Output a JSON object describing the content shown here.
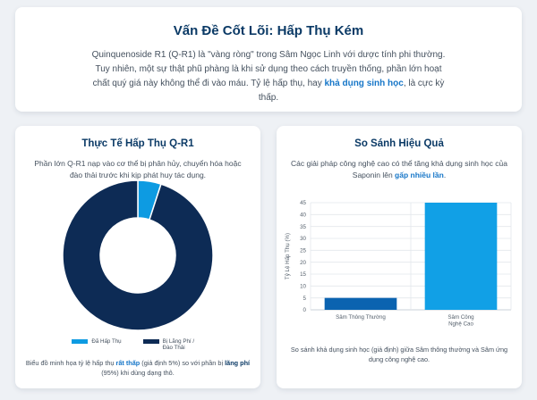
{
  "header": {
    "title": "Vấn Đề Cốt Lõi: Hấp Thụ Kém",
    "body_pre": "Quinquenoside R1 (Q-R1) là \"vàng ròng\" trong Sâm Ngọc Linh với dược tính phi thường. Tuy nhiên, một sự thật phũ phàng là khi sử dụng theo cách truyền thống, phần lớn hoạt chất quý giá này không thể đi vào máu. Tỷ lệ hấp thụ, hay ",
    "body_highlight": "khả dụng sinh học",
    "body_post": ", là cực kỳ thấp."
  },
  "left_card": {
    "title": "Thực Tế Hấp Thụ Q-R1",
    "subtitle": "Phần lớn Q-R1 nạp vào cơ thể bị phân hủy, chuyển hóa hoặc đào thải trước khi kịp phát huy tác dụng.",
    "footer_pre": "Biểu đồ minh họa tỷ lệ hấp thụ ",
    "footer_hl1": "rất thấp",
    "footer_mid": " (giả định 5%) so với phần bị ",
    "footer_hl2": "lãng phí",
    "footer_post": " (95%) khi dùng dạng thô."
  },
  "right_card": {
    "title": "So Sánh Hiệu Quả",
    "subtitle_pre": "Các giải pháp công nghệ cao có thể tăng khả dụng sinh học của Saponin lên ",
    "subtitle_hl": "gấp nhiều lần",
    "subtitle_post": ".",
    "footer": "So sánh khả dụng sinh học (giả định) giữa Sâm thông thường và Sâm ứng dụng công nghệ cao."
  },
  "colors": {
    "dark_navy": "#0d2b55",
    "light_blue": "#0d9be2",
    "bar_dark": "#0b63b0",
    "bar_light": "#11a0e6"
  },
  "chart_data": [
    {
      "type": "pie",
      "variant": "donut",
      "categories": [
        "Đã Hấp Thụ",
        "Bị Lãng Phí / Đào Thải"
      ],
      "values": [
        5,
        95
      ],
      "colors": [
        "#0d9be2",
        "#0d2b55"
      ],
      "legend_position": "bottom"
    },
    {
      "type": "bar",
      "categories": [
        "Sâm Thông Thường",
        "Sâm Công Nghệ Cao"
      ],
      "values": [
        5,
        45
      ],
      "ylabel": "Tỷ Lệ Hấp Thụ (%)",
      "ylim": [
        0,
        45
      ],
      "yticks": [
        0,
        5,
        10,
        15,
        20,
        25,
        30,
        35,
        40,
        45
      ],
      "colors": [
        "#0b63b0",
        "#11a0e6"
      ],
      "grid": true
    }
  ]
}
